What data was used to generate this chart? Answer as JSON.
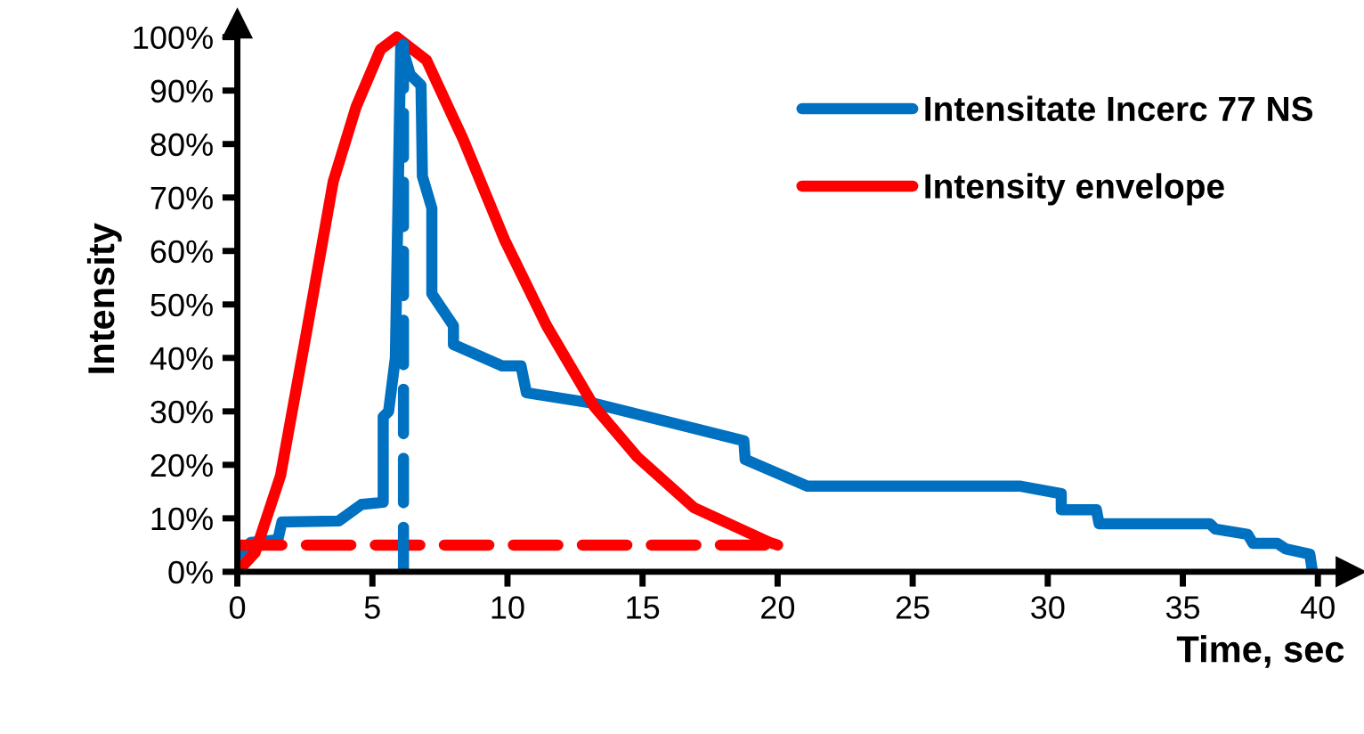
{
  "chart_data": {
    "type": "line",
    "xlabel": "Time, sec",
    "ylabel": "Intensity",
    "xlim": [
      0,
      41
    ],
    "ylim": [
      0,
      102
    ],
    "xticks": [
      0,
      5,
      10,
      15,
      20,
      25,
      30,
      35,
      40
    ],
    "yticks": [
      {
        "value": 0,
        "label": "0%"
      },
      {
        "value": 10,
        "label": "10%"
      },
      {
        "value": 20,
        "label": "20%"
      },
      {
        "value": 30,
        "label": "30%"
      },
      {
        "value": 40,
        "label": "40%"
      },
      {
        "value": 50,
        "label": "50%"
      },
      {
        "value": 60,
        "label": "60%"
      },
      {
        "value": 70,
        "label": "70%"
      },
      {
        "value": 80,
        "label": "80%"
      },
      {
        "value": 90,
        "label": "90%"
      },
      {
        "value": 100,
        "label": "100%"
      }
    ],
    "grid": false,
    "legend": "top right",
    "marker": "none",
    "series": [
      {
        "name": "Intensitate Incerc 77 NS",
        "color": "#0070c0",
        "line_style": "solid",
        "x": [
          0,
          0.5,
          1.5,
          1.65,
          3.75,
          4.6,
          5.4,
          5.4,
          5.6,
          5.85,
          6.05,
          6.4,
          6.8,
          6.85,
          7.2,
          7.2,
          8.0,
          8.0,
          9.8,
          10.5,
          10.7,
          13.2,
          13.6,
          18.75,
          18.8,
          21.1,
          29,
          30.5,
          30.5,
          31.8,
          31.9,
          36,
          36.2,
          37.4,
          37.6,
          38.5,
          38.8,
          39.7,
          39.8
        ],
        "values": [
          3,
          5.5,
          6,
          9.3,
          9.5,
          12.6,
          13,
          29,
          30,
          40,
          99,
          93,
          91,
          74,
          68,
          52,
          46,
          42.5,
          38.5,
          38.5,
          33.5,
          31.5,
          31,
          24.5,
          21,
          16,
          16,
          14.6,
          11.6,
          11.6,
          9,
          9,
          8,
          7,
          5.3,
          5.3,
          4.3,
          3.3,
          0
        ]
      },
      {
        "name": "Intensity envelope",
        "color": "#ff0000",
        "line_style": "solid",
        "x": [
          0,
          0.66,
          1.6,
          2.55,
          3.55,
          4.4,
          5.3,
          5.9,
          7.0,
          8.35,
          9.9,
          11.45,
          13.2,
          14.8,
          16.9,
          19.7,
          20
        ],
        "values": [
          0,
          3.6,
          18,
          44.5,
          73,
          87,
          97.7,
          100,
          95.7,
          81,
          62,
          46,
          31,
          21.5,
          12,
          5.5,
          5
        ]
      },
      {
        "color": "#ff0000",
        "line_style": "dashed",
        "x": [
          0,
          20
        ],
        "values": [
          5,
          5
        ]
      },
      {
        "color": "#0070c0",
        "line_style": "dashed",
        "x": [
          6.15,
          6.15
        ],
        "values": [
          0,
          100
        ]
      }
    ]
  }
}
